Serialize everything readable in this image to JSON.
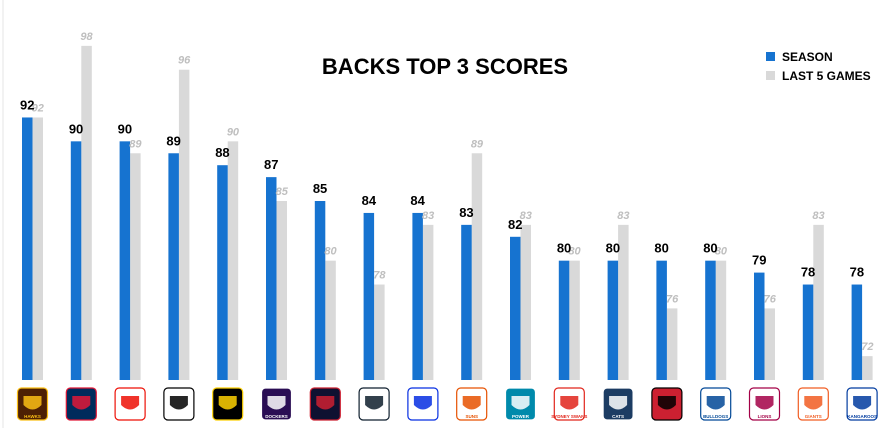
{
  "chart_data": {
    "type": "bar",
    "title": "BACKS TOP 3 SCORES",
    "xlabel": "",
    "ylabel": "",
    "ylim": [
      70,
      100
    ],
    "grid": false,
    "legend_position": "top-right",
    "categories": [
      "Hawks",
      "Crows",
      "Saints",
      "Magpies",
      "Tigers",
      "Dockers",
      "Demons",
      "Blues",
      "Eagles",
      "Suns",
      "Power",
      "Swans",
      "Cats",
      "Bombers",
      "Bulldogs",
      "Lions",
      "Giants",
      "Kangaroos"
    ],
    "logo_labels": [
      "HAWKS",
      "",
      "",
      "",
      "",
      "DOCKERS",
      "",
      "",
      "",
      "SUNS",
      "POWER",
      "SYDNEY SWANS",
      "CATS",
      "",
      "BULLDOGS",
      "LIONS",
      "GIANTS",
      "KANGAROOS"
    ],
    "series": [
      {
        "name": "SEASON",
        "color": "#1673d0",
        "values": [
          92,
          90,
          90,
          89,
          88,
          87,
          85,
          84,
          84,
          83,
          82,
          80,
          80,
          80,
          80,
          79,
          78,
          78
        ]
      },
      {
        "name": "LAST 5 GAMES",
        "color": "#d9d9d9",
        "values": [
          92,
          98,
          89,
          96,
          90,
          85,
          80,
          78,
          83,
          89,
          83,
          80,
          83,
          76,
          80,
          76,
          83,
          72
        ]
      }
    ]
  },
  "logos": [
    {
      "icon": "hawks-logo-icon",
      "bg": "#4d2004",
      "fg": "#fbbf15"
    },
    {
      "icon": "crows-logo-icon",
      "bg": "#002b5c",
      "fg": "#e21937"
    },
    {
      "icon": "saints-logo-icon",
      "bg": "#ffffff",
      "fg": "#ed0f05"
    },
    {
      "icon": "magpies-logo-icon",
      "bg": "#ffffff",
      "fg": "#000000"
    },
    {
      "icon": "tigers-logo-icon",
      "bg": "#000000",
      "fg": "#fed102"
    },
    {
      "icon": "dockers-logo-icon",
      "bg": "#2a0d54",
      "fg": "#ffffff"
    },
    {
      "icon": "demons-logo-icon",
      "bg": "#0f1131",
      "fg": "#cc2031"
    },
    {
      "icon": "blues-logo-icon",
      "bg": "#ffffff",
      "fg": "#0e1e2d"
    },
    {
      "icon": "eagles-logo-icon",
      "bg": "#ffffff",
      "fg": "#062ee2"
    },
    {
      "icon": "suns-logo-icon",
      "bg": "#ffffff",
      "fg": "#e65100"
    },
    {
      "icon": "power-logo-icon",
      "bg": "#008aab",
      "fg": "#ffffff"
    },
    {
      "icon": "swans-logo-icon",
      "bg": "#ffffff",
      "fg": "#e1251b"
    },
    {
      "icon": "cats-logo-icon",
      "bg": "#1c3c63",
      "fg": "#ffffff"
    },
    {
      "icon": "bombers-logo-icon",
      "bg": "#cc2031",
      "fg": "#000000"
    },
    {
      "icon": "bulldogs-logo-icon",
      "bg": "#ffffff",
      "fg": "#014896"
    },
    {
      "icon": "lions-logo-icon",
      "bg": "#ffffff",
      "fg": "#a30046"
    },
    {
      "icon": "giants-logo-icon",
      "bg": "#ffffff",
      "fg": "#f15c22"
    },
    {
      "icon": "kangaroos-logo-icon",
      "bg": "#ffffff",
      "fg": "#013b9f"
    }
  ]
}
